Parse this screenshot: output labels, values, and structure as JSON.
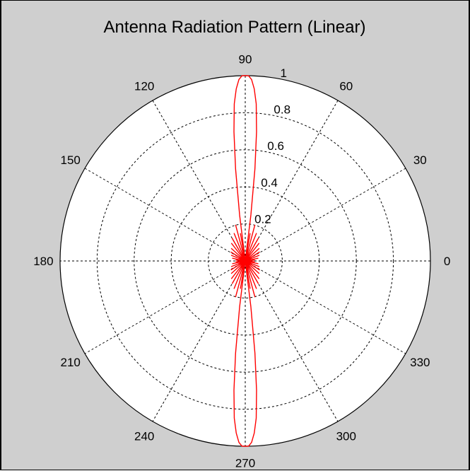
{
  "chart_data": {
    "type": "polar-line",
    "title": "Antenna Radiation Pattern (Linear)",
    "angle_unit": "degrees",
    "angle_ticks": [
      "0",
      "30",
      "60",
      "90",
      "120",
      "150",
      "180",
      "210",
      "240",
      "270",
      "300",
      "330"
    ],
    "angle_tick_values": [
      0,
      30,
      60,
      90,
      120,
      150,
      180,
      210,
      240,
      270,
      300,
      330
    ],
    "radial_ticks": [
      "0.2",
      "0.4",
      "0.6",
      "0.8",
      "1"
    ],
    "radial_tick_values": [
      0.2,
      0.4,
      0.6,
      0.8,
      1
    ],
    "rlim": [
      0,
      1
    ],
    "grid": true,
    "series": [
      {
        "color": "#ff0000",
        "points": [
          [
            0,
            0.0
          ],
          [
            5,
            0.05
          ],
          [
            8,
            0.0
          ],
          [
            12,
            0.07
          ],
          [
            17,
            0.0
          ],
          [
            22,
            0.08
          ],
          [
            27,
            0.0
          ],
          [
            32,
            0.09
          ],
          [
            37,
            0.0
          ],
          [
            42,
            0.1
          ],
          [
            47,
            0.0
          ],
          [
            52,
            0.12
          ],
          [
            56,
            0.0
          ],
          [
            60,
            0.14
          ],
          [
            64,
            0.0
          ],
          [
            68,
            0.16
          ],
          [
            72,
            0.0
          ],
          [
            75,
            0.2
          ],
          [
            77,
            0.0
          ],
          [
            80,
            0.15
          ],
          [
            82,
            0.0
          ],
          [
            83,
            0.25
          ],
          [
            84,
            0.5
          ],
          [
            85,
            0.7
          ],
          [
            86,
            0.85
          ],
          [
            87,
            0.93
          ],
          [
            88,
            0.98
          ],
          [
            89,
            1.0
          ],
          [
            90,
            1.0
          ],
          [
            91,
            1.0
          ],
          [
            92,
            0.98
          ],
          [
            93,
            0.93
          ],
          [
            94,
            0.85
          ],
          [
            95,
            0.7
          ],
          [
            96,
            0.5
          ],
          [
            97,
            0.25
          ],
          [
            98,
            0.0
          ],
          [
            100,
            0.15
          ],
          [
            103,
            0.0
          ],
          [
            105,
            0.2
          ],
          [
            108,
            0.0
          ],
          [
            112,
            0.16
          ],
          [
            116,
            0.0
          ],
          [
            120,
            0.14
          ],
          [
            124,
            0.0
          ],
          [
            128,
            0.12
          ],
          [
            133,
            0.0
          ],
          [
            138,
            0.1
          ],
          [
            143,
            0.0
          ],
          [
            148,
            0.09
          ],
          [
            153,
            0.0
          ],
          [
            158,
            0.08
          ],
          [
            163,
            0.0
          ],
          [
            168,
            0.07
          ],
          [
            172,
            0.0
          ],
          [
            175,
            0.05
          ],
          [
            180,
            0.0
          ],
          [
            185,
            0.05
          ],
          [
            188,
            0.0
          ],
          [
            192,
            0.07
          ],
          [
            197,
            0.0
          ],
          [
            202,
            0.08
          ],
          [
            207,
            0.0
          ],
          [
            212,
            0.09
          ],
          [
            217,
            0.0
          ],
          [
            222,
            0.1
          ],
          [
            227,
            0.0
          ],
          [
            232,
            0.12
          ],
          [
            236,
            0.0
          ],
          [
            240,
            0.14
          ],
          [
            244,
            0.0
          ],
          [
            248,
            0.16
          ],
          [
            252,
            0.0
          ],
          [
            255,
            0.2
          ],
          [
            257,
            0.0
          ],
          [
            260,
            0.15
          ],
          [
            262,
            0.0
          ],
          [
            263,
            0.25
          ],
          [
            264,
            0.5
          ],
          [
            265,
            0.7
          ],
          [
            266,
            0.85
          ],
          [
            267,
            0.93
          ],
          [
            268,
            0.98
          ],
          [
            269,
            1.0
          ],
          [
            270,
            1.0
          ],
          [
            271,
            1.0
          ],
          [
            272,
            0.98
          ],
          [
            273,
            0.93
          ],
          [
            274,
            0.85
          ],
          [
            275,
            0.7
          ],
          [
            276,
            0.5
          ],
          [
            277,
            0.25
          ],
          [
            278,
            0.0
          ],
          [
            280,
            0.15
          ],
          [
            283,
            0.0
          ],
          [
            285,
            0.2
          ],
          [
            288,
            0.0
          ],
          [
            292,
            0.16
          ],
          [
            296,
            0.0
          ],
          [
            300,
            0.14
          ],
          [
            304,
            0.0
          ],
          [
            308,
            0.12
          ],
          [
            313,
            0.0
          ],
          [
            318,
            0.1
          ],
          [
            323,
            0.0
          ],
          [
            328,
            0.09
          ],
          [
            333,
            0.0
          ],
          [
            338,
            0.08
          ],
          [
            343,
            0.0
          ],
          [
            348,
            0.07
          ],
          [
            352,
            0.0
          ],
          [
            355,
            0.05
          ],
          [
            360,
            0.0
          ]
        ]
      }
    ]
  }
}
